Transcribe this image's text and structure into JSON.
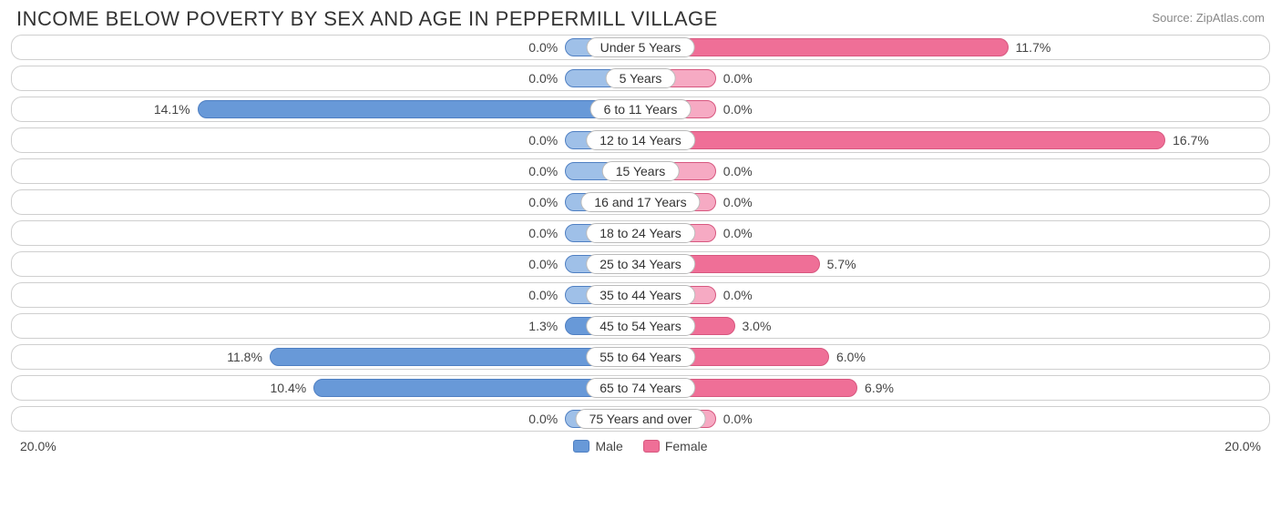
{
  "title": "INCOME BELOW POVERTY BY SEX AND AGE IN PEPPERMILL VILLAGE",
  "source": "Source: ZipAtlas.com",
  "axis": {
    "max": 20.0,
    "min_bar_pct": 12.0,
    "left_label": "20.0%",
    "right_label": "20.0%"
  },
  "colors": {
    "male_fill": "#9fc0e8",
    "male_fill_strong": "#6899d8",
    "male_border": "#4f7fc2",
    "female_fill": "#f6aac3",
    "female_fill_strong": "#ef6f97",
    "female_border": "#d7577f",
    "row_border": "#cfcfcf",
    "text": "#444444",
    "background": "#ffffff"
  },
  "legend": {
    "male": "Male",
    "female": "Female"
  },
  "rows": [
    {
      "category": "Under 5 Years",
      "male": 0.0,
      "female": 11.7,
      "male_label": "0.0%",
      "female_label": "11.7%"
    },
    {
      "category": "5 Years",
      "male": 0.0,
      "female": 0.0,
      "male_label": "0.0%",
      "female_label": "0.0%"
    },
    {
      "category": "6 to 11 Years",
      "male": 14.1,
      "female": 0.0,
      "male_label": "14.1%",
      "female_label": "0.0%"
    },
    {
      "category": "12 to 14 Years",
      "male": 0.0,
      "female": 16.7,
      "male_label": "0.0%",
      "female_label": "16.7%"
    },
    {
      "category": "15 Years",
      "male": 0.0,
      "female": 0.0,
      "male_label": "0.0%",
      "female_label": "0.0%"
    },
    {
      "category": "16 and 17 Years",
      "male": 0.0,
      "female": 0.0,
      "male_label": "0.0%",
      "female_label": "0.0%"
    },
    {
      "category": "18 to 24 Years",
      "male": 0.0,
      "female": 0.0,
      "male_label": "0.0%",
      "female_label": "0.0%"
    },
    {
      "category": "25 to 34 Years",
      "male": 0.0,
      "female": 5.7,
      "male_label": "0.0%",
      "female_label": "5.7%"
    },
    {
      "category": "35 to 44 Years",
      "male": 0.0,
      "female": 0.0,
      "male_label": "0.0%",
      "female_label": "0.0%"
    },
    {
      "category": "45 to 54 Years",
      "male": 1.3,
      "female": 3.0,
      "male_label": "1.3%",
      "female_label": "3.0%"
    },
    {
      "category": "55 to 64 Years",
      "male": 11.8,
      "female": 6.0,
      "male_label": "11.8%",
      "female_label": "6.0%"
    },
    {
      "category": "65 to 74 Years",
      "male": 10.4,
      "female": 6.9,
      "male_label": "10.4%",
      "female_label": "6.9%"
    },
    {
      "category": "75 Years and over",
      "male": 0.0,
      "female": 0.0,
      "male_label": "0.0%",
      "female_label": "0.0%"
    }
  ]
}
